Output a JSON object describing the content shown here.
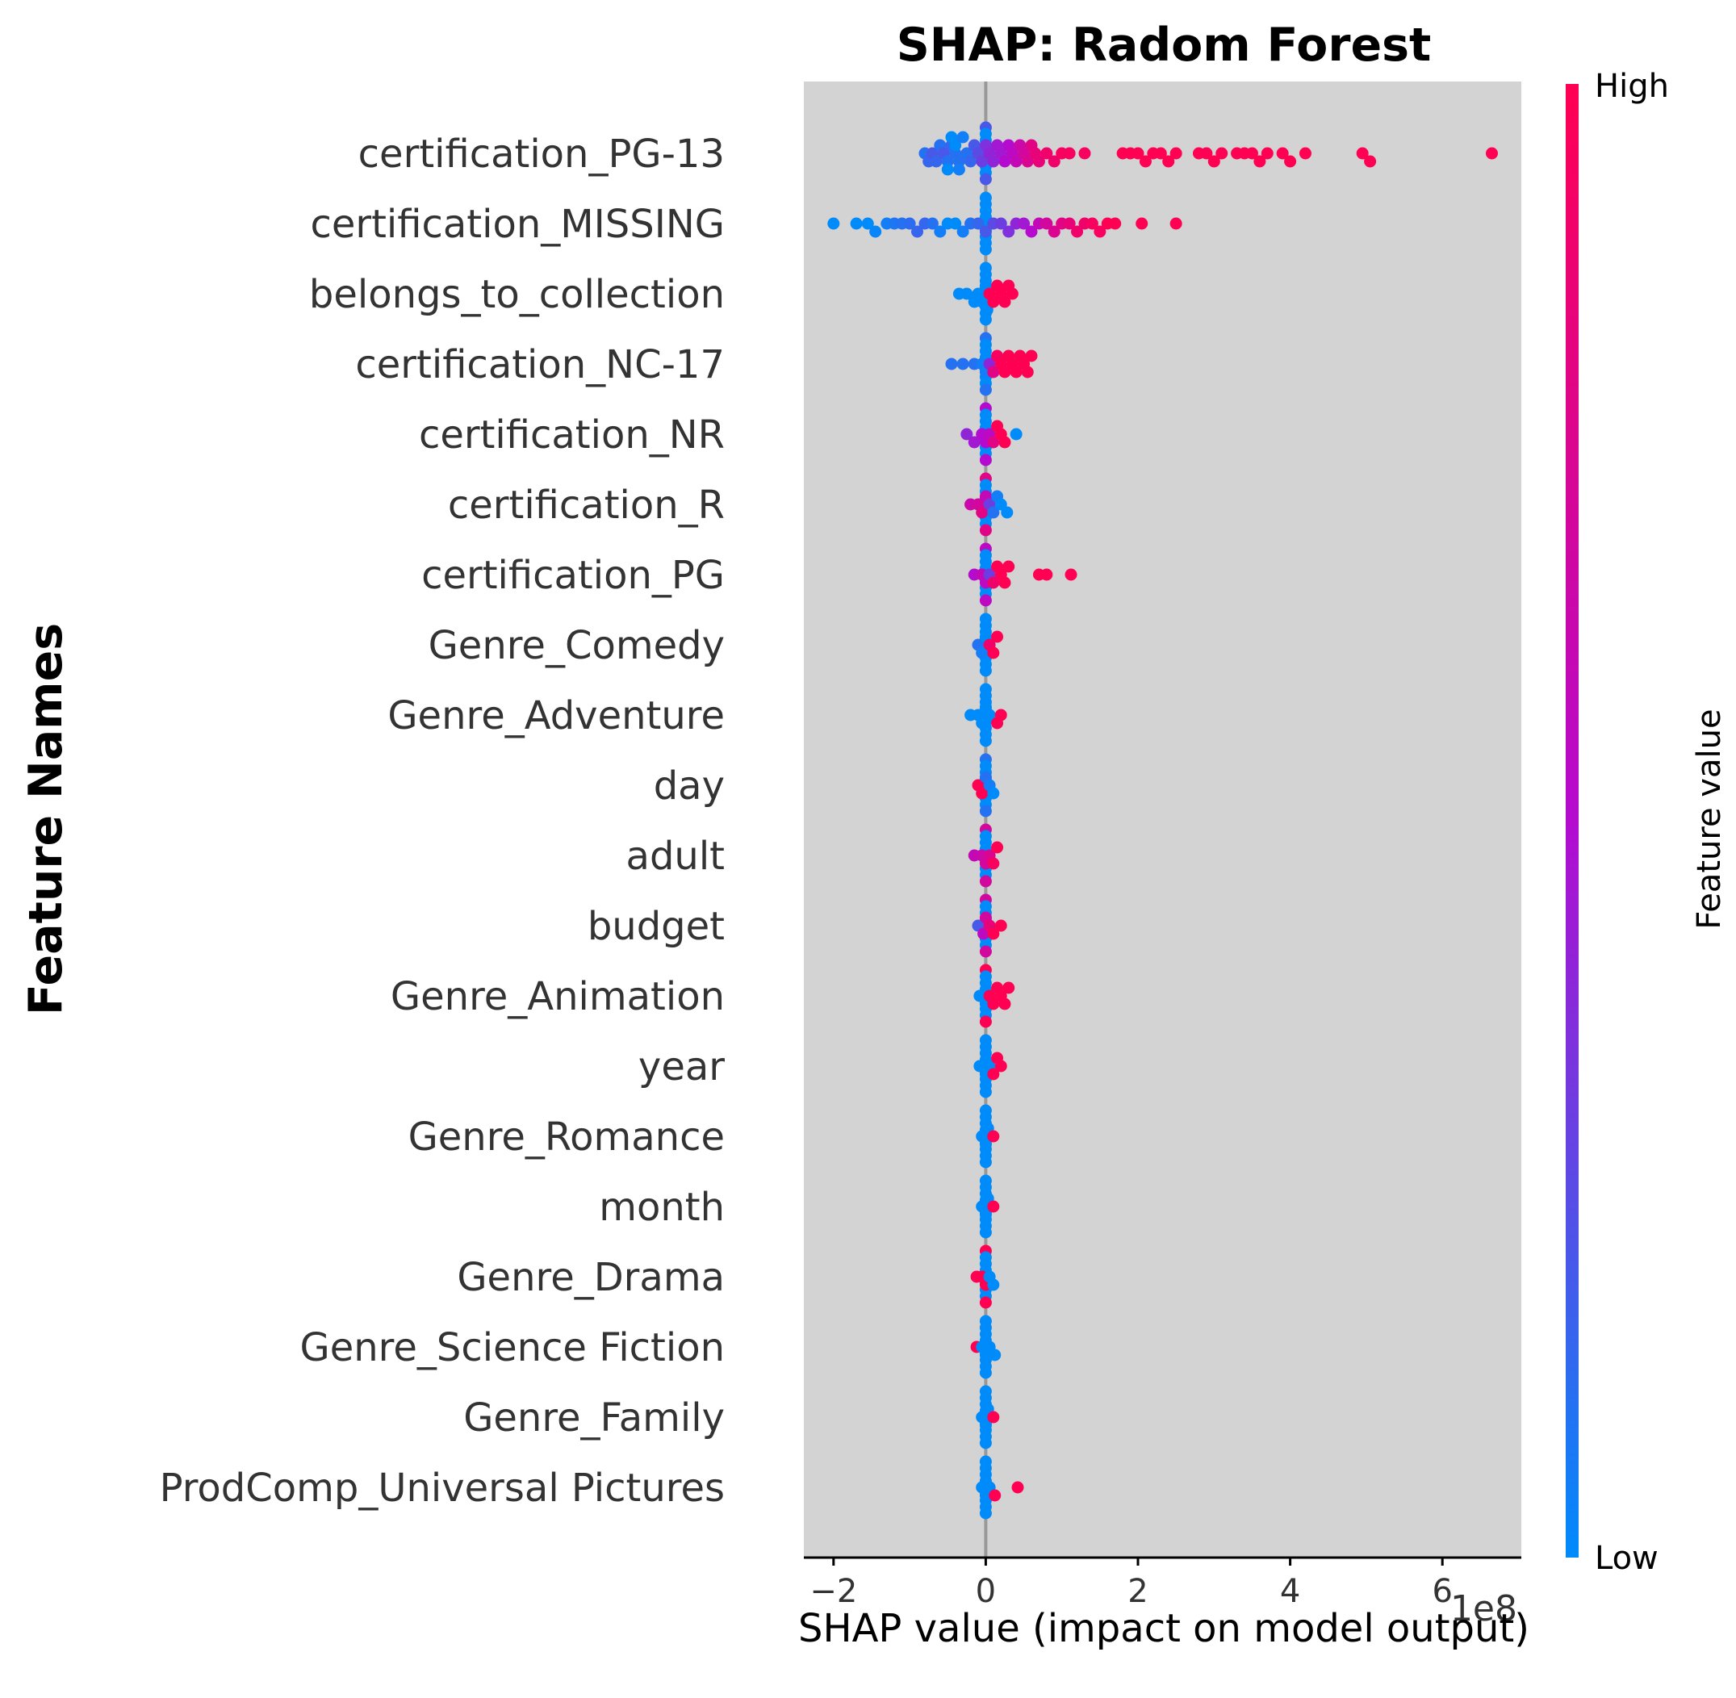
{
  "chart_data": {
    "type": "scatter",
    "subtype": "shap-beeswarm",
    "title": "SHAP: Radom Forest",
    "xlabel": "SHAP value (impact on model output)",
    "ylabel": "Feature Names",
    "x_offset_text": "1e8",
    "xlim": [
      -2.4,
      7.1
    ],
    "xticks": [
      -2,
      0,
      2,
      4,
      6
    ],
    "xtick_labels": [
      "−2",
      "0",
      "2",
      "4",
      "6"
    ],
    "background": "#d3d3d3",
    "zero_line_color": "#999999",
    "colorbar": {
      "title": "Feature value",
      "high_label": "High",
      "low_label": "Low",
      "low_color": "#008bfb",
      "mid_color": "#b40bcf",
      "high_color": "#ff0052"
    },
    "features": [
      {
        "name": "certification_PG-13",
        "points": [
          [
            -0.8,
            0.1
          ],
          [
            -0.75,
            0.15
          ],
          [
            -0.7,
            0.2
          ],
          [
            -0.65,
            0.15
          ],
          [
            -0.6,
            0.1
          ],
          [
            -0.55,
            0.2
          ],
          [
            -0.5,
            0.1
          ],
          [
            -0.45,
            0.15
          ],
          [
            -0.4,
            0.1
          ],
          [
            -0.35,
            0.1
          ],
          [
            -0.5,
            0.0
          ],
          [
            -0.45,
            0.0
          ],
          [
            -0.4,
            0.0
          ],
          [
            -0.35,
            0.05
          ],
          [
            -0.3,
            0.05
          ],
          [
            -0.25,
            0.1
          ],
          [
            -0.2,
            0.15
          ],
          [
            -0.15,
            0.2
          ],
          [
            -0.1,
            0.25
          ],
          [
            -0.05,
            0.3
          ],
          [
            0.0,
            0.35
          ],
          [
            0.05,
            0.4
          ],
          [
            0.1,
            0.4
          ],
          [
            0.15,
            0.45
          ],
          [
            0.2,
            0.45
          ],
          [
            0.25,
            0.5
          ],
          [
            0.3,
            0.5
          ],
          [
            0.35,
            0.55
          ],
          [
            0.4,
            0.6
          ],
          [
            0.45,
            0.65
          ],
          [
            0.5,
            0.7
          ],
          [
            0.55,
            0.75
          ],
          [
            0.6,
            0.8
          ],
          [
            0.65,
            0.85
          ],
          [
            0.7,
            0.85
          ],
          [
            0.8,
            0.9
          ],
          [
            0.9,
            0.9
          ],
          [
            1.0,
            0.95
          ],
          [
            1.1,
            0.95
          ],
          [
            1.3,
            0.95
          ],
          [
            1.8,
            1.0
          ],
          [
            1.9,
            1.0
          ],
          [
            2.0,
            1.0
          ],
          [
            2.1,
            1.0
          ],
          [
            2.2,
            1.0
          ],
          [
            2.3,
            1.0
          ],
          [
            2.4,
            1.0
          ],
          [
            2.5,
            1.0
          ],
          [
            2.8,
            1.0
          ],
          [
            2.9,
            1.0
          ],
          [
            3.0,
            1.0
          ],
          [
            3.1,
            1.0
          ],
          [
            3.3,
            1.0
          ],
          [
            3.4,
            1.0
          ],
          [
            3.5,
            1.0
          ],
          [
            3.6,
            1.0
          ],
          [
            3.7,
            1.0
          ],
          [
            3.9,
            1.0
          ],
          [
            4.0,
            1.0
          ],
          [
            4.2,
            1.0
          ],
          [
            4.95,
            1.0
          ],
          [
            5.05,
            1.0
          ],
          [
            6.65,
            1.0
          ]
        ]
      },
      {
        "name": "certification_MISSING",
        "points": [
          [
            -2.0,
            0.0
          ],
          [
            -1.7,
            0.0
          ],
          [
            -1.55,
            0.0
          ],
          [
            -1.45,
            0.02
          ],
          [
            -1.3,
            0.05
          ],
          [
            -1.2,
            0.08
          ],
          [
            -1.1,
            0.1
          ],
          [
            -1.0,
            0.12
          ],
          [
            -0.9,
            0.15
          ],
          [
            -0.8,
            0.15
          ],
          [
            -0.7,
            0.1
          ],
          [
            -0.6,
            0.05
          ],
          [
            -0.5,
            0.0
          ],
          [
            -0.4,
            0.0
          ],
          [
            -0.3,
            0.05
          ],
          [
            -0.2,
            0.1
          ],
          [
            -0.1,
            0.15
          ],
          [
            0.0,
            0.2
          ],
          [
            0.1,
            0.25
          ],
          [
            0.2,
            0.3
          ],
          [
            0.3,
            0.35
          ],
          [
            0.4,
            0.4
          ],
          [
            0.5,
            0.45
          ],
          [
            0.6,
            0.5
          ],
          [
            0.7,
            0.6
          ],
          [
            0.8,
            0.7
          ],
          [
            0.9,
            0.75
          ],
          [
            1.0,
            0.8
          ],
          [
            1.1,
            0.85
          ],
          [
            1.2,
            0.9
          ],
          [
            1.3,
            0.9
          ],
          [
            1.4,
            0.95
          ],
          [
            1.5,
            0.95
          ],
          [
            1.6,
            1.0
          ],
          [
            1.7,
            1.0
          ],
          [
            2.05,
            1.0
          ],
          [
            2.5,
            1.0
          ]
        ]
      },
      {
        "name": "belongs_to_collection",
        "points": [
          [
            -0.35,
            0.0
          ],
          [
            -0.25,
            0.0
          ],
          [
            -0.15,
            0.0
          ],
          [
            -0.1,
            0.0
          ],
          [
            -0.05,
            0.0
          ],
          [
            0.0,
            0.0
          ],
          [
            0.02,
            0.0
          ],
          [
            0.05,
            1.0
          ],
          [
            0.1,
            1.0
          ],
          [
            0.15,
            1.0
          ],
          [
            0.2,
            1.0
          ],
          [
            0.25,
            1.0
          ],
          [
            0.3,
            1.0
          ],
          [
            0.35,
            1.0
          ]
        ]
      },
      {
        "name": "certification_NC-17",
        "points": [
          [
            -0.45,
            0.1
          ],
          [
            -0.3,
            0.1
          ],
          [
            -0.15,
            0.1
          ],
          [
            -0.05,
            0.05
          ],
          [
            0.0,
            0.05
          ],
          [
            0.05,
            0.4
          ],
          [
            0.1,
            0.8
          ],
          [
            0.15,
            0.95
          ],
          [
            0.2,
            1.0
          ],
          [
            0.25,
            1.0
          ],
          [
            0.3,
            1.0
          ],
          [
            0.35,
            1.0
          ],
          [
            0.4,
            1.0
          ],
          [
            0.45,
            1.0
          ],
          [
            0.5,
            1.0
          ],
          [
            0.55,
            1.0
          ],
          [
            0.6,
            1.0
          ]
        ]
      },
      {
        "name": "certification_NR",
        "points": [
          [
            -0.25,
            0.4
          ],
          [
            -0.15,
            0.45
          ],
          [
            -0.05,
            0.5
          ],
          [
            0.0,
            0.5
          ],
          [
            0.05,
            0.55
          ],
          [
            0.1,
            0.8
          ],
          [
            0.15,
            1.0
          ],
          [
            0.2,
            1.0
          ],
          [
            0.25,
            1.0
          ],
          [
            0.4,
            0.0
          ]
        ]
      },
      {
        "name": "certification_R",
        "points": [
          [
            -0.2,
            0.65
          ],
          [
            -0.1,
            0.7
          ],
          [
            -0.05,
            0.8
          ],
          [
            0.0,
            0.6
          ],
          [
            0.05,
            0.3
          ],
          [
            0.1,
            0.1
          ],
          [
            0.15,
            0.05
          ],
          [
            0.2,
            0.0
          ],
          [
            0.28,
            0.0
          ]
        ]
      },
      {
        "name": "certification_PG",
        "points": [
          [
            -0.15,
            0.5
          ],
          [
            -0.05,
            0.6
          ],
          [
            0.0,
            0.55
          ],
          [
            0.05,
            0.3
          ],
          [
            0.1,
            0.9
          ],
          [
            0.15,
            1.0
          ],
          [
            0.2,
            1.0
          ],
          [
            0.25,
            1.0
          ],
          [
            0.3,
            1.0
          ],
          [
            0.7,
            1.0
          ],
          [
            0.8,
            1.0
          ],
          [
            1.12,
            1.0
          ]
        ]
      },
      {
        "name": "Genre_Comedy",
        "points": [
          [
            -0.1,
            0.1
          ],
          [
            -0.05,
            0.05
          ],
          [
            0.0,
            0.0
          ],
          [
            0.05,
            0.9
          ],
          [
            0.1,
            1.0
          ],
          [
            0.15,
            1.0
          ]
        ]
      },
      {
        "name": "Genre_Adventure",
        "points": [
          [
            -0.2,
            0.0
          ],
          [
            -0.1,
            0.0
          ],
          [
            -0.05,
            0.0
          ],
          [
            0.0,
            0.0
          ],
          [
            0.05,
            0.0
          ],
          [
            0.15,
            1.0
          ],
          [
            0.2,
            1.0
          ]
        ]
      },
      {
        "name": "day",
        "points": [
          [
            -0.1,
            1.0
          ],
          [
            -0.05,
            1.0
          ],
          [
            0.0,
            0.1
          ],
          [
            0.05,
            0.05
          ],
          [
            0.1,
            0.0
          ]
        ]
      },
      {
        "name": "adult",
        "points": [
          [
            -0.15,
            0.6
          ],
          [
            -0.05,
            0.65
          ],
          [
            0.0,
            0.7
          ],
          [
            0.05,
            0.75
          ],
          [
            0.1,
            0.95
          ],
          [
            0.15,
            1.0
          ]
        ]
      },
      {
        "name": "budget",
        "points": [
          [
            -0.1,
            0.2
          ],
          [
            -0.03,
            0.55
          ],
          [
            0.0,
            0.7
          ],
          [
            0.05,
            0.85
          ],
          [
            0.1,
            1.0
          ],
          [
            0.2,
            1.0
          ]
        ]
      },
      {
        "name": "Genre_Animation",
        "points": [
          [
            -0.08,
            0.0
          ],
          [
            0.0,
            0.0
          ],
          [
            0.05,
            1.0
          ],
          [
            0.1,
            1.0
          ],
          [
            0.15,
            1.0
          ],
          [
            0.2,
            1.0
          ],
          [
            0.25,
            1.0
          ],
          [
            0.3,
            1.0
          ]
        ]
      },
      {
        "name": "year",
        "points": [
          [
            -0.08,
            0.0
          ],
          [
            0.0,
            0.0
          ],
          [
            0.05,
            0.0
          ],
          [
            0.1,
            1.0
          ],
          [
            0.15,
            1.0
          ],
          [
            0.2,
            1.0
          ]
        ]
      },
      {
        "name": "Genre_Romance",
        "points": [
          [
            -0.05,
            0.0
          ],
          [
            0.0,
            0.0
          ],
          [
            0.03,
            0.0
          ],
          [
            0.1,
            1.0
          ]
        ]
      },
      {
        "name": "month",
        "points": [
          [
            -0.05,
            0.0
          ],
          [
            0.0,
            0.0
          ],
          [
            0.03,
            0.0
          ],
          [
            0.1,
            1.0
          ]
        ]
      },
      {
        "name": "Genre_Drama",
        "points": [
          [
            -0.12,
            1.0
          ],
          [
            -0.05,
            1.0
          ],
          [
            0.0,
            1.0
          ],
          [
            0.05,
            0.0
          ],
          [
            0.1,
            0.0
          ]
        ]
      },
      {
        "name": "Genre_Science Fiction",
        "points": [
          [
            -0.12,
            1.0
          ],
          [
            -0.05,
            0.0
          ],
          [
            0.0,
            0.0
          ],
          [
            0.05,
            0.0
          ],
          [
            0.12,
            0.0
          ]
        ]
      },
      {
        "name": "Genre_Family",
        "points": [
          [
            -0.05,
            0.0
          ],
          [
            0.0,
            0.0
          ],
          [
            0.03,
            0.0
          ],
          [
            0.1,
            1.0
          ]
        ]
      },
      {
        "name": "ProdComp_Universal Pictures",
        "points": [
          [
            -0.05,
            0.0
          ],
          [
            0.0,
            0.0
          ],
          [
            0.05,
            0.0
          ],
          [
            0.12,
            1.0
          ],
          [
            0.42,
            1.0
          ]
        ]
      }
    ]
  }
}
